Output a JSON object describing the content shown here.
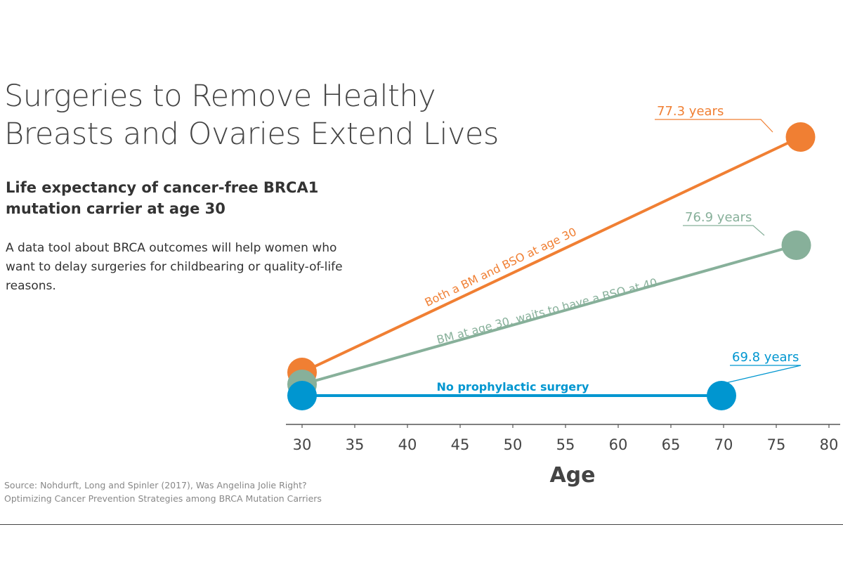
{
  "header": {
    "title_line1": "Surgeries to Remove Healthy",
    "title_line2": "Breasts and Ovaries Extend Lives",
    "subtitle_line1": "Life expectancy of cancer-free BRCA1",
    "subtitle_line2": "mutation carrier at age 30",
    "description": "A data tool about BRCA outcomes will help women who want to delay surgeries for childbearing or quality-of-life reasons."
  },
  "footer": {
    "source_line1": "Source: Nohdurft, Long and Spinler (2017), Was Angelina Jolie Right?",
    "source_line2": "Optimizing Cancer Prevention Strategies among BRCA Mutation Carriers"
  },
  "chart_data": {
    "type": "line",
    "xlabel": "Age",
    "xlim": [
      30,
      80
    ],
    "xticks": [
      30,
      35,
      40,
      45,
      50,
      55,
      60,
      65,
      70,
      75,
      80
    ],
    "grid": false,
    "series": [
      {
        "name": "Both a BM and BSO at age 30",
        "start_age": 30,
        "end_age": 77.3,
        "end_label": "77.3 years",
        "color": "#f07f33"
      },
      {
        "name": "BM at age 30, waits to have a BSO at 40",
        "start_age": 30,
        "end_age": 76.9,
        "end_label": "76.9 years",
        "color": "#87b09a"
      },
      {
        "name": "No prophylactic surgery",
        "start_age": 30,
        "end_age": 69.8,
        "end_label": "69.8 years",
        "color": "#0096d0"
      }
    ]
  }
}
